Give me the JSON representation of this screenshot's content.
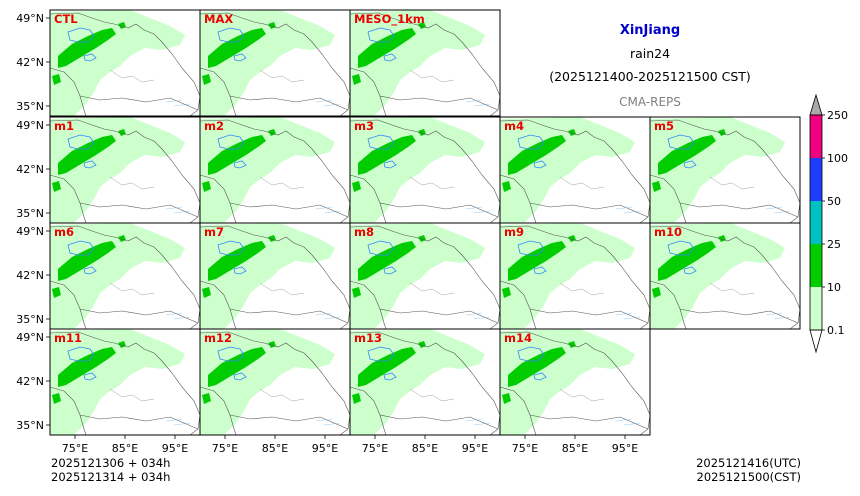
{
  "title": {
    "region": "XinJiang",
    "variable": "rain24",
    "period": "(2025121400-2025121500 CST)",
    "model": "CMA-REPS"
  },
  "members": [
    "CTL",
    "MAX",
    "MESO_1km",
    "m1",
    "m2",
    "m3",
    "m4",
    "m5",
    "m6",
    "m7",
    "m8",
    "m9",
    "m10",
    "m11",
    "m12",
    "m13",
    "m14"
  ],
  "axes": {
    "lat_ticks": [
      "49°N",
      "42°N",
      "35°N"
    ],
    "lon_ticks": [
      "75°E",
      "85°E",
      "95°E"
    ]
  },
  "colorbar": {
    "levels": [
      "0.1",
      "10",
      "25",
      "50",
      "100",
      "250"
    ],
    "colors": [
      "#ccffcc",
      "#00cc00",
      "#00c0c0",
      "#1e3cff",
      "#f0007f",
      "#aaaaaa"
    ]
  },
  "init_info": {
    "line1": "2025121306  +  034h",
    "line2": "2025121314  +  034h"
  },
  "valid_info": {
    "line1": "2025121416(UTC)",
    "line2": "2025121500(CST)"
  },
  "colors": {
    "light_rain": "#ccffcc",
    "moderate_rain": "#00cc00",
    "label": "#ee0000",
    "title": "#0000cc",
    "boundary": "#555555",
    "lakes": "#3388ff"
  }
}
